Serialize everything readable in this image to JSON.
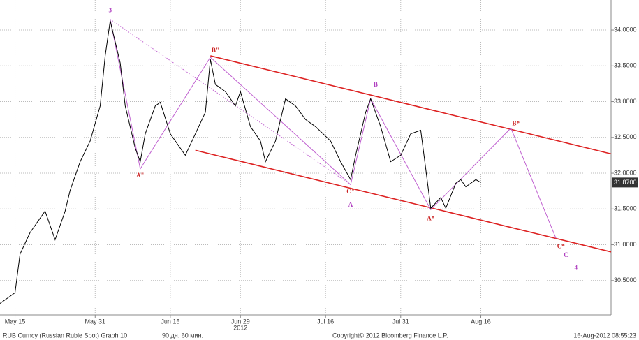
{
  "chart_data": {
    "type": "line",
    "x": [
      "2012-05-12",
      "2012-05-15",
      "2012-05-16",
      "2012-05-18",
      "2012-05-21",
      "2012-05-23",
      "2012-05-25",
      "2012-05-26",
      "2012-05-28",
      "2012-05-30",
      "2012-06-01",
      "2012-06-02",
      "2012-06-03",
      "2012-06-05",
      "2012-06-06",
      "2012-06-08",
      "2012-06-09",
      "2012-06-10",
      "2012-06-12",
      "2012-06-13",
      "2012-06-15",
      "2012-06-17",
      "2012-06-18",
      "2012-06-20",
      "2012-06-22",
      "2012-06-23",
      "2012-06-24",
      "2012-06-26",
      "2012-06-28",
      "2012-06-29",
      "2012-07-01",
      "2012-07-03",
      "2012-07-04",
      "2012-07-06",
      "2012-07-08",
      "2012-07-10",
      "2012-07-12",
      "2012-07-14",
      "2012-07-17",
      "2012-07-19",
      "2012-07-21",
      "2012-07-22",
      "2012-07-24",
      "2012-07-25",
      "2012-07-27",
      "2012-07-29",
      "2012-07-31",
      "2012-08-02",
      "2012-08-04",
      "2012-08-05",
      "2012-08-06",
      "2012-08-08",
      "2012-08-09",
      "2012-08-11",
      "2012-08-12",
      "2012-08-13",
      "2012-08-15",
      "2012-08-16"
    ],
    "values": [
      30.18,
      30.33,
      30.87,
      31.17,
      31.47,
      31.07,
      31.47,
      31.76,
      32.16,
      32.45,
      32.94,
      33.64,
      34.13,
      33.54,
      32.94,
      32.35,
      32.16,
      32.55,
      32.94,
      32.99,
      32.55,
      32.35,
      32.25,
      32.55,
      32.85,
      33.59,
      33.24,
      33.14,
      32.94,
      33.14,
      32.65,
      32.45,
      32.16,
      32.45,
      33.04,
      32.94,
      32.75,
      32.65,
      32.45,
      32.16,
      31.91,
      32.25,
      32.85,
      33.04,
      32.65,
      32.16,
      32.25,
      32.55,
      32.6,
      32.06,
      31.51,
      31.66,
      31.51,
      31.86,
      31.91,
      31.81,
      31.91,
      31.87
    ],
    "color": "#000000",
    "last_price_label": {
      "value": 31.87,
      "label": "31.8700"
    },
    "xlim": [
      "2012-05-12",
      "2012-09-11"
    ],
    "xticks": [
      {
        "value": "2012-05-15",
        "label": "May 15"
      },
      {
        "value": "2012-05-31",
        "label": "May 31"
      },
      {
        "value": "2012-06-15",
        "label": "Jun 15"
      },
      {
        "value": "2012-06-29",
        "label": "Jun 29"
      },
      {
        "value": "2012-07-16",
        "label": "Jul 16"
      },
      {
        "value": "2012-07-31",
        "label": "Jul 31"
      },
      {
        "value": "2012-08-16",
        "label": "Aug 16"
      }
    ],
    "year_label": "2012",
    "ylim": [
      30.02,
      34.42
    ],
    "yticks": [
      {
        "value": 30.5,
        "label": "30.5000"
      },
      {
        "value": 31,
        "label": "31.0000"
      },
      {
        "value": 31.5,
        "label": "31.5000"
      },
      {
        "value": 32,
        "label": "32.0000"
      },
      {
        "value": 32.5,
        "label": "32.5000"
      },
      {
        "value": 33,
        "label": "33.0000"
      },
      {
        "value": 33.5,
        "label": "33.5000"
      },
      {
        "value": 34,
        "label": "34.0000"
      }
    ],
    "grid": true,
    "lines": [
      {
        "color": "#dd2222",
        "style": "solid",
        "points": [
          {
            "x": "2012-06-23",
            "y": 33.64
          },
          {
            "x": "2012-09-11",
            "y": 32.27
          }
        ]
      },
      {
        "color": "#dd2222",
        "style": "solid",
        "points": [
          {
            "x": "2012-06-20",
            "y": 32.32
          },
          {
            "x": "2012-09-11",
            "y": 30.9
          }
        ]
      },
      {
        "color": "#c060d0",
        "style": "dotted",
        "points": [
          {
            "x": "2012-06-03",
            "y": 34.15
          },
          {
            "x": "2012-07-21",
            "y": 31.84
          }
        ]
      },
      {
        "color": "#c060d0",
        "style": "solid",
        "points": [
          {
            "x": "2012-06-03",
            "y": 34.15
          },
          {
            "x": "2012-06-09",
            "y": 32.06
          },
          {
            "x": "2012-06-23",
            "y": 33.62
          },
          {
            "x": "2012-07-21",
            "y": 31.84
          },
          {
            "x": "2012-07-25",
            "y": 33.04
          },
          {
            "x": "2012-08-06",
            "y": 31.49
          },
          {
            "x": "2012-08-22",
            "y": 32.63
          },
          {
            "x": "2012-08-31",
            "y": 31.09
          }
        ]
      }
    ],
    "annotations": [
      {
        "text": "3",
        "x": "2012-06-03",
        "y": 34.27,
        "color": "#b040c0",
        "size": "large"
      },
      {
        "text": "A\"",
        "x": "2012-06-09",
        "y": 31.96,
        "color": "#cc2222",
        "size": "small"
      },
      {
        "text": "B\"",
        "x": "2012-06-24",
        "y": 33.71,
        "color": "#cc2222",
        "size": "small"
      },
      {
        "text": "C\"",
        "x": "2012-07-21",
        "y": 31.74,
        "color": "#cc2222",
        "size": "small"
      },
      {
        "text": "A",
        "x": "2012-07-21",
        "y": 31.55,
        "color": "#b040c0",
        "size": "large"
      },
      {
        "text": "B",
        "x": "2012-07-26",
        "y": 33.23,
        "color": "#b040c0",
        "size": "large"
      },
      {
        "text": "A*",
        "x": "2012-08-06",
        "y": 31.36,
        "color": "#cc2222",
        "size": "small"
      },
      {
        "text": "B*",
        "x": "2012-08-23",
        "y": 32.69,
        "color": "#cc2222",
        "size": "small"
      },
      {
        "text": "C*",
        "x": "2012-09-01",
        "y": 30.97,
        "color": "#cc2222",
        "size": "small"
      },
      {
        "text": "C",
        "x": "2012-09-02",
        "y": 30.85,
        "color": "#b040c0",
        "size": "large"
      },
      {
        "text": "4",
        "x": "2012-09-04",
        "y": 30.67,
        "color": "#b040c0",
        "size": "large"
      }
    ],
    "footer": {
      "left": "RUB Curncy (Russian Ruble Spot) Graph 10",
      "period": "90 дн. 60 мин.",
      "copyright": "Copyright© 2012 Bloomberg Finance L.P.",
      "timestamp": "16-Aug-2012 08:55:23"
    }
  }
}
